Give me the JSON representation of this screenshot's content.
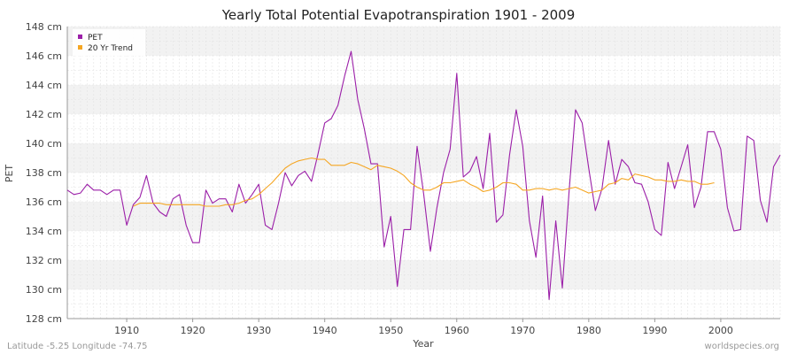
{
  "chart_data": {
    "type": "line",
    "title": "Yearly Total Potential Evapotranspiration 1901 - 2009",
    "xlabel": "Year",
    "ylabel": "PET",
    "xlim": [
      1901,
      2009
    ],
    "ylim": [
      128,
      148
    ],
    "x_ticks": [
      1910,
      1920,
      1930,
      1940,
      1950,
      1960,
      1970,
      1980,
      1990,
      2000
    ],
    "y_ticks": [
      128,
      130,
      132,
      134,
      136,
      138,
      140,
      142,
      144,
      146,
      148
    ],
    "y_tick_labels": [
      "128 cm",
      "130 cm",
      "132 cm",
      "134 cm",
      "136 cm",
      "138 cm",
      "140 cm",
      "142 cm",
      "144 cm",
      "146 cm",
      "148 cm"
    ],
    "legend_position": "top-left",
    "series": [
      {
        "name": "PET",
        "color": "#9b1fa8",
        "x_start": 1901,
        "values": [
          136.8,
          136.5,
          136.6,
          137.2,
          136.8,
          136.8,
          136.5,
          136.8,
          136.8,
          134.4,
          135.8,
          136.3,
          137.8,
          135.9,
          135.3,
          135.0,
          136.2,
          136.5,
          134.4,
          133.2,
          133.2,
          136.8,
          135.9,
          136.2,
          136.2,
          135.3,
          137.2,
          135.9,
          136.5,
          137.2,
          134.4,
          134.1,
          135.9,
          138.0,
          137.1,
          137.8,
          138.1,
          137.4,
          139.3,
          141.4,
          141.7,
          142.6,
          144.6,
          146.3,
          143.0,
          141.0,
          138.6,
          138.6,
          132.9,
          135.0,
          130.2,
          134.1,
          134.1,
          139.8,
          136.5,
          132.6,
          135.6,
          138.0,
          139.6,
          144.8,
          137.7,
          138.1,
          139.1,
          136.9,
          140.7,
          134.6,
          135.1,
          139.2,
          142.3,
          139.8,
          134.7,
          132.2,
          136.4,
          129.3,
          134.7,
          130.1,
          136.6,
          142.3,
          141.4,
          138.3,
          135.4,
          136.9,
          140.2,
          137.2,
          138.9,
          138.4,
          137.3,
          137.2,
          136.0,
          134.1,
          133.7,
          138.7,
          136.9,
          138.4,
          139.9,
          135.6,
          137.0,
          140.8,
          140.8,
          139.6,
          135.6,
          134.0,
          134.1,
          140.5,
          140.2,
          136.1,
          134.6,
          138.4,
          139.2
        ]
      },
      {
        "name": "20 Yr Trend",
        "color": "#f5a623",
        "x_start": 1911,
        "values": [
          135.7,
          135.9,
          135.9,
          135.9,
          135.9,
          135.8,
          135.8,
          135.8,
          135.8,
          135.8,
          135.8,
          135.7,
          135.7,
          135.7,
          135.8,
          135.8,
          135.9,
          136.1,
          136.2,
          136.5,
          136.9,
          137.3,
          137.8,
          138.3,
          138.6,
          138.8,
          138.9,
          139.0,
          138.9,
          138.9,
          138.5,
          138.5,
          138.5,
          138.7,
          138.6,
          138.4,
          138.2,
          138.5,
          138.4,
          138.3,
          138.1,
          137.8,
          137.3,
          137.0,
          136.8,
          136.8,
          137.0,
          137.3,
          137.3,
          137.4,
          137.5,
          137.2,
          137.0,
          136.7,
          136.8,
          137.0,
          137.3,
          137.3,
          137.2,
          136.8,
          136.8,
          136.9,
          136.9,
          136.8,
          136.9,
          136.8,
          136.9,
          137.0,
          136.8,
          136.6,
          136.7,
          136.8,
          137.2,
          137.3,
          137.6,
          137.5,
          137.9,
          137.8,
          137.7,
          137.5,
          137.5,
          137.4,
          137.4,
          137.5,
          137.4,
          137.4,
          137.2,
          137.2,
          137.3
        ]
      }
    ]
  },
  "footer": {
    "location": "Latitude -5.25 Longitude -74.75",
    "source": "worldspecies.org"
  }
}
